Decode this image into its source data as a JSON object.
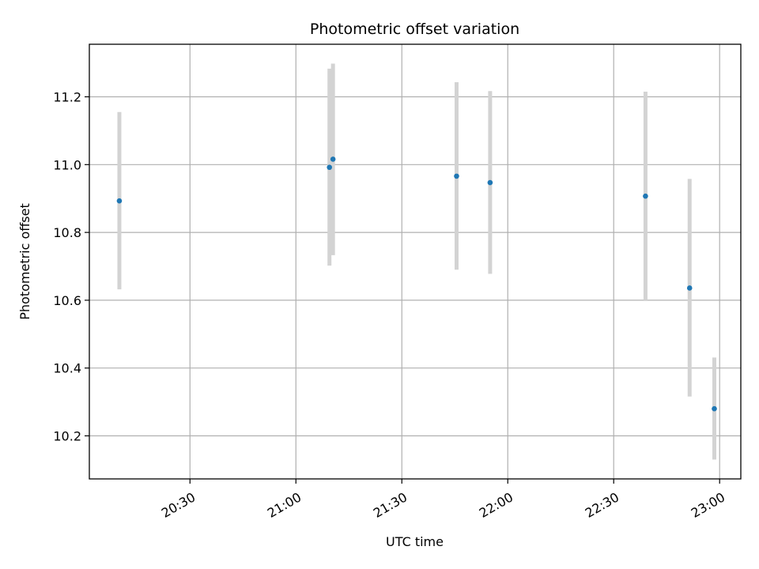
{
  "chart_data": {
    "type": "scatter",
    "title": "Photometric offset variation",
    "xlabel": "UTC time",
    "ylabel": "Photometric offset",
    "x_type": "time",
    "xlim": [
      "20:01:30",
      "23:06:00"
    ],
    "ylim": [
      10.073,
      11.355
    ],
    "x_ticks": [
      "20:30",
      "21:00",
      "21:30",
      "22:00",
      "22:30",
      "23:00"
    ],
    "y_ticks": [
      "10.2",
      "10.4",
      "10.6",
      "10.8",
      "11.0",
      "11.2"
    ],
    "y_tick_values": [
      10.2,
      10.4,
      10.6,
      10.8,
      11.0,
      11.2
    ],
    "grid": true,
    "colors": {
      "marker": "#1f77b4",
      "errorbar": "#d3d3d3",
      "grid": "#b0b0b0",
      "axes": "#000000"
    },
    "points": [
      {
        "time": "20:10:00",
        "y": 10.893,
        "ymin": 10.632,
        "ymax": 11.155
      },
      {
        "time": "21:09:30",
        "y": 10.992,
        "ymin": 10.702,
        "ymax": 11.283
      },
      {
        "time": "21:10:30",
        "y": 11.016,
        "ymin": 10.733,
        "ymax": 11.298
      },
      {
        "time": "21:45:30",
        "y": 10.966,
        "ymin": 10.69,
        "ymax": 11.243
      },
      {
        "time": "21:55:00",
        "y": 10.947,
        "ymin": 10.678,
        "ymax": 11.217
      },
      {
        "time": "22:39:00",
        "y": 10.907,
        "ymin": 10.6,
        "ymax": 11.215
      },
      {
        "time": "22:51:30",
        "y": 10.636,
        "ymin": 10.316,
        "ymax": 10.958
      },
      {
        "time": "22:58:30",
        "y": 10.28,
        "ymin": 10.13,
        "ymax": 10.431
      }
    ]
  }
}
